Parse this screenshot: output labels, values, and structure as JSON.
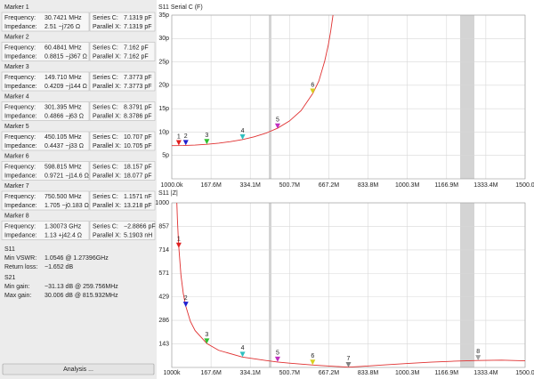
{
  "panel": {
    "fields": [
      "Frequency:",
      "Impedance:",
      "Series C:",
      "Parallel X:"
    ],
    "markers": [
      {
        "title": "Marker 1",
        "color": "#e02020",
        "frequency": "30.7421 MHz",
        "impedance": "2.51 −j726 Ω",
        "series_c": "7.1319 pF",
        "parallel_x": "7.1319 pF"
      },
      {
        "title": "Marker 2",
        "color": "#2020d0",
        "frequency": "60.4841 MHz",
        "impedance": "0.8815 −j367 Ω",
        "series_c": "7.162 pF",
        "parallel_x": "7.162 pF"
      },
      {
        "title": "Marker 3",
        "color": "#30c030",
        "frequency": "149.710 MHz",
        "impedance": "0.4209 −j144 Ω",
        "series_c": "7.3773 pF",
        "parallel_x": "7.3773 pF"
      },
      {
        "title": "Marker 4",
        "color": "#30c0c0",
        "frequency": "301.395 MHz",
        "impedance": "0.4866 −j63 Ω",
        "series_c": "8.3791 pF",
        "parallel_x": "8.3786 pF"
      },
      {
        "title": "Marker 5",
        "color": "#c030c0",
        "frequency": "450.105 MHz",
        "impedance": "0.4437 −j33 Ω",
        "series_c": "10.707 pF",
        "parallel_x": "10.705 pF"
      },
      {
        "title": "Marker 6",
        "color": "#d8d020",
        "frequency": "598.815 MHz",
        "impedance": "0.9721 −j14.6 Ω",
        "series_c": "18.157 pF",
        "parallel_x": "18.077 pF"
      },
      {
        "title": "Marker 7",
        "color": "#808080",
        "frequency": "750.500 MHz",
        "impedance": "1.705 −j0.183 Ω",
        "series_c": "1.1571 nF",
        "parallel_x": "13.218 pF"
      },
      {
        "title": "Marker 8",
        "color": "#a0a0a0",
        "frequency": "1.30073 GHz",
        "impedance": "1.13 +j42.4 Ω",
        "series_c": "−2.8866 pF",
        "parallel_x": "5.1903 nH"
      }
    ],
    "s11": {
      "title": "S11",
      "rows": [
        [
          "Min VSWR:",
          "1.0546 @ 1.27396GHz"
        ],
        [
          "Return loss:",
          "−1.652 dB"
        ]
      ]
    },
    "s21": {
      "title": "S21",
      "rows": [
        [
          "Min gain:",
          "−31.13 dB @ 259.756MHz"
        ],
        [
          "Max gain:",
          "30.006 dB @ 815.932MHz"
        ]
      ]
    },
    "button": "Analysis ..."
  },
  "chart_data": [
    {
      "type": "line",
      "title": "S11 Serial C (F)",
      "xlim": [
        1,
        1500
      ],
      "ylim": [
        0,
        35
      ],
      "xticks": [
        {
          "value": 1,
          "label": "1000.0k"
        },
        {
          "value": 167.6,
          "label": "167.6M"
        },
        {
          "value": 334.1,
          "label": "334.1M"
        },
        {
          "value": 500.7,
          "label": "500.7M"
        },
        {
          "value": 667.2,
          "label": "667.2M"
        },
        {
          "value": 833.8,
          "label": "833.8M"
        },
        {
          "value": 1000.3,
          "label": "1000.3M"
        },
        {
          "value": 1166.9,
          "label": "1166.9M"
        },
        {
          "value": 1333.4,
          "label": "1333.4M"
        },
        {
          "value": 1500,
          "label": "1500.0"
        }
      ],
      "yticks": [
        {
          "value": 5,
          "label": "5p"
        },
        {
          "value": 10,
          "label": "10p"
        },
        {
          "value": 15,
          "label": "15p"
        },
        {
          "value": 20,
          "label": "20p"
        },
        {
          "value": 25,
          "label": "25p"
        },
        {
          "value": 30,
          "label": "30p"
        },
        {
          "value": 35,
          "label": "35p"
        }
      ],
      "grid": true,
      "series": [
        {
          "color": "#e03030",
          "x": [
            1,
            50,
            100,
            150,
            200,
            250,
            300,
            350,
            400,
            450,
            500,
            550,
            600,
            625,
            650,
            665,
            675,
            685
          ],
          "values": [
            7.1,
            7.13,
            7.22,
            7.38,
            7.62,
            7.95,
            8.39,
            8.97,
            9.75,
            10.83,
            12.35,
            14.6,
            18.3,
            20.9,
            25.2,
            28.6,
            31.5,
            35
          ]
        }
      ],
      "markers": [
        {
          "label": "1",
          "color": "#e02020",
          "x": 30.7421,
          "y": 7.1319
        },
        {
          "label": "2",
          "color": "#2020d0",
          "x": 60.4841,
          "y": 7.162
        },
        {
          "label": "3",
          "color": "#30c030",
          "x": 149.71,
          "y": 7.3773
        },
        {
          "label": "4",
          "color": "#30c0c0",
          "x": 301.395,
          "y": 8.3791
        },
        {
          "label": "5",
          "color": "#c030c0",
          "x": 450.105,
          "y": 10.707
        },
        {
          "label": "6",
          "color": "#d8d020",
          "x": 598.815,
          "y": 18.157
        }
      ]
    },
    {
      "type": "line",
      "title": "S11 |Z|",
      "xlim": [
        1,
        1500
      ],
      "ylim": [
        0,
        1000
      ],
      "xticks": [
        {
          "value": 1,
          "label": "1000k"
        },
        {
          "value": 167.6,
          "label": "167.6M"
        },
        {
          "value": 334.1,
          "label": "334.1M"
        },
        {
          "value": 500.7,
          "label": "500.7M"
        },
        {
          "value": 667.2,
          "label": "667.2M"
        },
        {
          "value": 833.8,
          "label": "833.8M"
        },
        {
          "value": 1000.3,
          "label": "1000.3M"
        },
        {
          "value": 1166.9,
          "label": "1166.9M"
        },
        {
          "value": 1333.4,
          "label": "1333.4M"
        },
        {
          "value": 1500,
          "label": "1500.0"
        }
      ],
      "yticks": [
        143,
        286,
        429,
        571,
        714,
        857,
        1000
      ],
      "grid": true,
      "series": [
        {
          "color": "#e03030",
          "x": [
            22.5,
            25,
            30,
            40,
            50,
            60,
            80,
            100,
            150,
            200,
            300,
            400,
            450,
            500,
            600,
            700,
            750,
            800,
            900,
            1000,
            1100,
            1200,
            1300,
            1400,
            1500
          ],
          "values": [
            1000,
            897,
            747,
            560,
            448,
            374,
            280,
            224,
            145,
            104,
            63,
            42,
            33,
            26,
            14.6,
            6,
            1.7,
            6,
            15,
            24,
            32,
            38,
            42,
            44,
            40
          ]
        }
      ],
      "markers": [
        {
          "label": "1",
          "color": "#e02020",
          "x": 30.7421,
          "y": 726
        },
        {
          "label": "2",
          "color": "#2020d0",
          "x": 60.4841,
          "y": 367
        },
        {
          "label": "3",
          "color": "#30c030",
          "x": 149.71,
          "y": 144
        },
        {
          "label": "4",
          "color": "#30c0c0",
          "x": 301.395,
          "y": 63
        },
        {
          "label": "5",
          "color": "#c030c0",
          "x": 450.105,
          "y": 33
        },
        {
          "label": "6",
          "color": "#d8d020",
          "x": 598.815,
          "y": 14.6
        },
        {
          "label": "7",
          "color": "#808080",
          "x": 750.5,
          "y": 0.183
        },
        {
          "label": "8",
          "color": "#a0a0a0",
          "x": 1300.73,
          "y": 42.4
        }
      ]
    }
  ]
}
